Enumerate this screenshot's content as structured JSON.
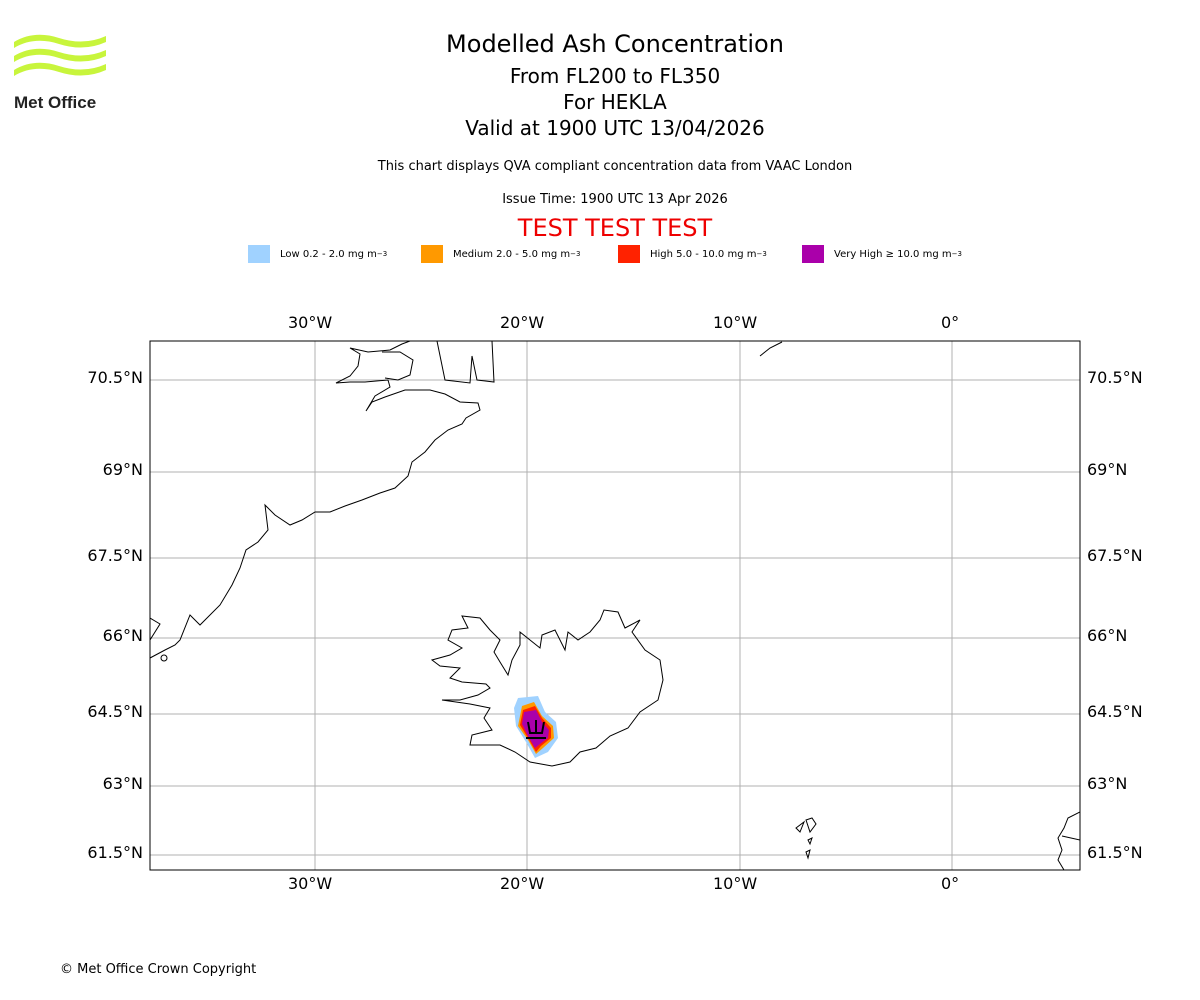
{
  "logo": {
    "text": "Met Office",
    "color": "#c8f53c"
  },
  "title": "Modelled Ash Concentration",
  "levels": "From FL200 to FL350",
  "volcano": "For HEKLA",
  "valid": "Valid at 1900 UTC 13/04/2026",
  "subtitle": "This chart displays QVA compliant concentration data from VAAC London",
  "issue": "Issue Time: 1900 UTC 13 Apr 2026",
  "test_banner": "TEST TEST TEST",
  "legend": [
    {
      "label": "Low 0.2 - 2.0 mg m",
      "color": "#a0d2ff"
    },
    {
      "label": "Medium 2.0 - 5.0 mg m",
      "color": "#ff9900"
    },
    {
      "label": "High 5.0 - 10.0 mg m",
      "color": "#ff2200"
    },
    {
      "label": "Very High ≥ 10.0 mg m",
      "color": "#aa00aa"
    }
  ],
  "unit_exp": "−3",
  "lon_labels": [
    "30°W",
    "20°W",
    "10°W",
    "0°"
  ],
  "lat_labels": [
    "70.5°N",
    "69°N",
    "67.5°N",
    "66°N",
    "64.5°N",
    "63°N",
    "61.5°N"
  ],
  "copyright": "© Met Office Crown Copyright"
}
